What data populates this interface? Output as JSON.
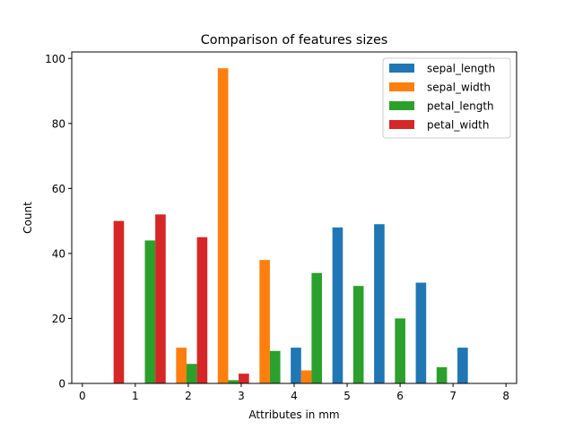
{
  "chart_data": {
    "type": "bar",
    "title": "Comparison of features sizes",
    "xlabel": "Attributes in mm",
    "ylabel": "Count",
    "xlim": [
      -0.2,
      8.2
    ],
    "ylim": [
      0,
      102
    ],
    "xticks": [
      0,
      1,
      2,
      3,
      4,
      5,
      6,
      7,
      8
    ],
    "yticks": [
      0,
      20,
      40,
      60,
      80,
      100
    ],
    "bin_edges": [
      0.0,
      0.787,
      1.574,
      2.361,
      3.148,
      3.935,
      4.722,
      5.509,
      6.296,
      7.083,
      7.87
    ],
    "series": [
      {
        "name": "sepal_length",
        "color": "#1f77b4",
        "values": [
          0,
          0,
          0,
          0,
          0,
          11,
          48,
          49,
          31,
          11
        ]
      },
      {
        "name": "sepal_width",
        "color": "#ff7f0e",
        "values": [
          0,
          0,
          11,
          97,
          38,
          4,
          0,
          0,
          0,
          0
        ]
      },
      {
        "name": "petal_length",
        "color": "#2ca02c",
        "values": [
          0,
          44,
          6,
          1,
          10,
          34,
          30,
          20,
          5,
          0
        ]
      },
      {
        "name": "petal_width",
        "color": "#d62728",
        "values": [
          50,
          52,
          45,
          3,
          0,
          0,
          0,
          0,
          0,
          0
        ]
      }
    ],
    "grid": false,
    "legend_position": "top-right"
  }
}
